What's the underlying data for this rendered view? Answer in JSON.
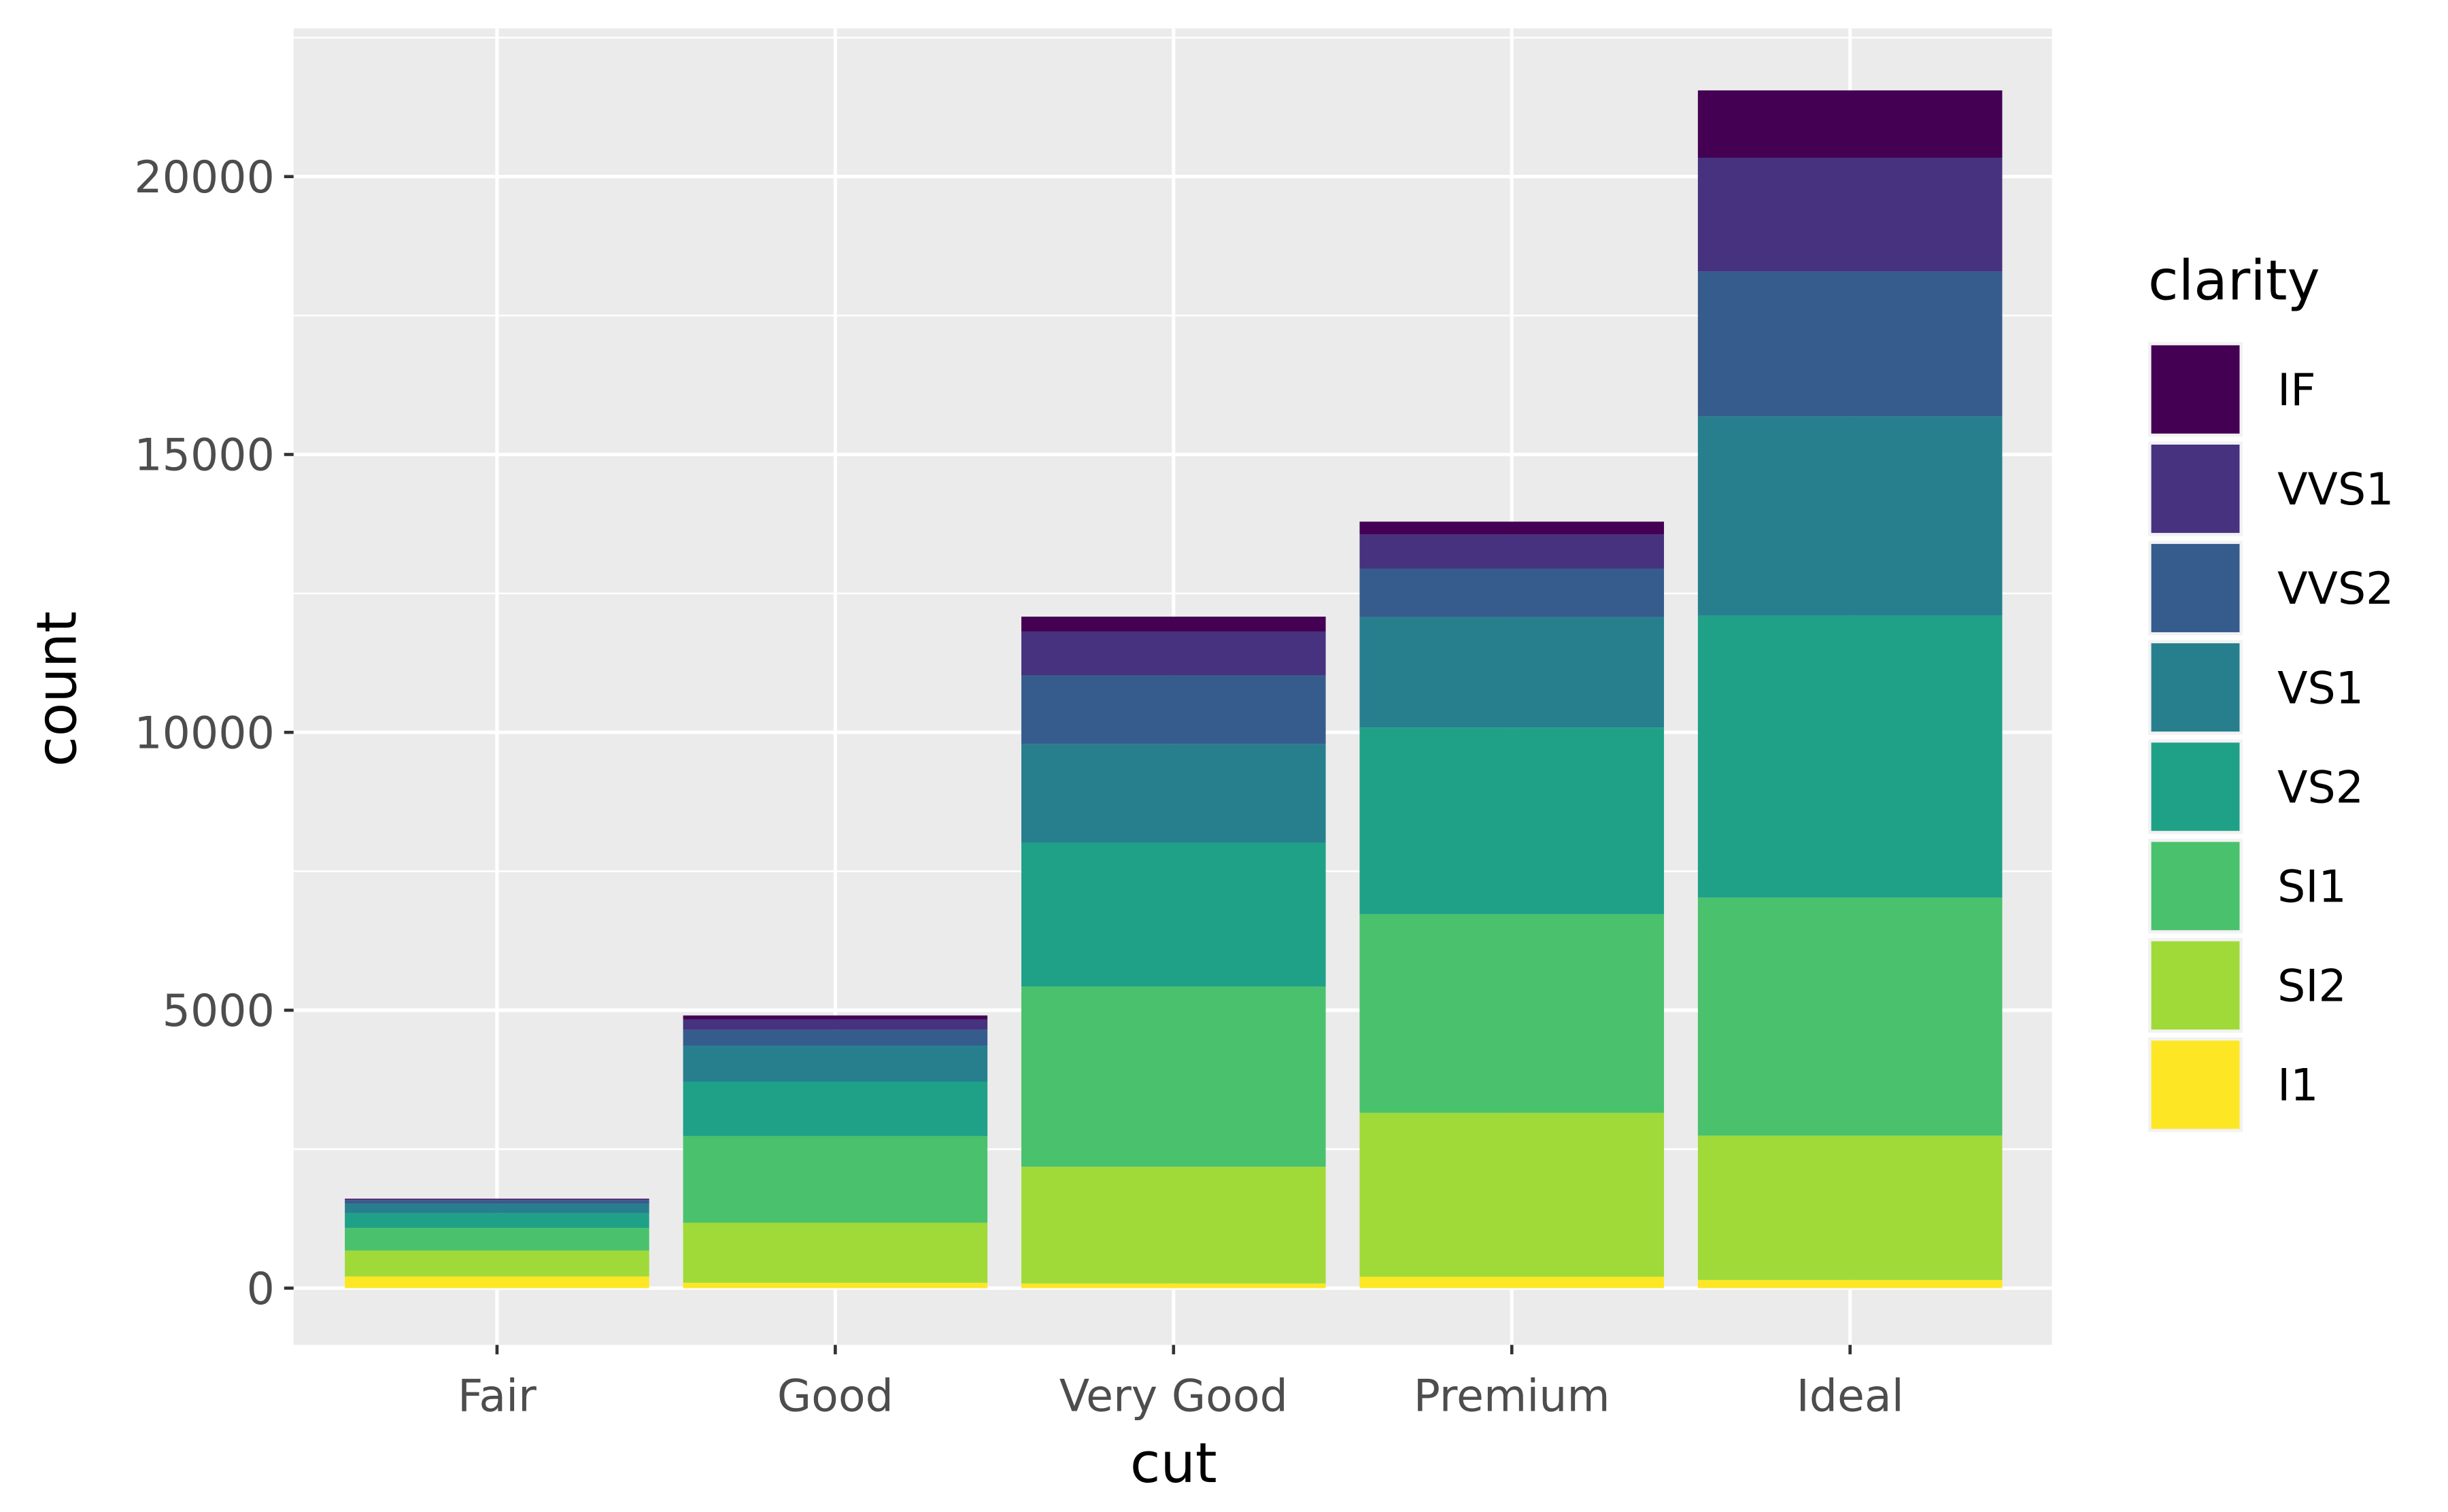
{
  "chart_data": {
    "type": "bar",
    "stacked": true,
    "xlabel": "cut",
    "ylabel": "count",
    "categories": [
      "Fair",
      "Good",
      "Very Good",
      "Premium",
      "Ideal"
    ],
    "ylim": [
      -1078,
      22629
    ],
    "yticks": [
      0,
      5000,
      10000,
      15000,
      20000
    ],
    "yticklabels": [
      "0",
      "5000",
      "10000",
      "15000",
      "20000"
    ],
    "grid": true,
    "legend": {
      "title": "clarity",
      "placement": "right"
    },
    "series": [
      {
        "name": "I1",
        "color": "#FDE725",
        "values": [
          210,
          96,
          84,
          205,
          146
        ]
      },
      {
        "name": "SI2",
        "color": "#A0DA39",
        "values": [
          466,
          1081,
          2100,
          2949,
          2598
        ]
      },
      {
        "name": "SI1",
        "color": "#4AC16D",
        "values": [
          408,
          1560,
          3240,
          3575,
          4282
        ]
      },
      {
        "name": "VS2",
        "color": "#1FA187",
        "values": [
          261,
          978,
          2591,
          3357,
          5071
        ]
      },
      {
        "name": "VS1",
        "color": "#277F8E",
        "values": [
          170,
          648,
          1775,
          1989,
          3589
        ]
      },
      {
        "name": "VVS2",
        "color": "#365C8D",
        "values": [
          69,
          286,
          1235,
          870,
          2606
        ]
      },
      {
        "name": "VVS1",
        "color": "#46327E",
        "values": [
          17,
          186,
          789,
          616,
          2047
        ]
      },
      {
        "name": "IF",
        "color": "#440154",
        "values": [
          9,
          71,
          268,
          230,
          1212
        ]
      }
    ],
    "legend_order": [
      "IF",
      "VVS1",
      "VVS2",
      "VS1",
      "VS2",
      "SI1",
      "SI2",
      "I1"
    ]
  }
}
